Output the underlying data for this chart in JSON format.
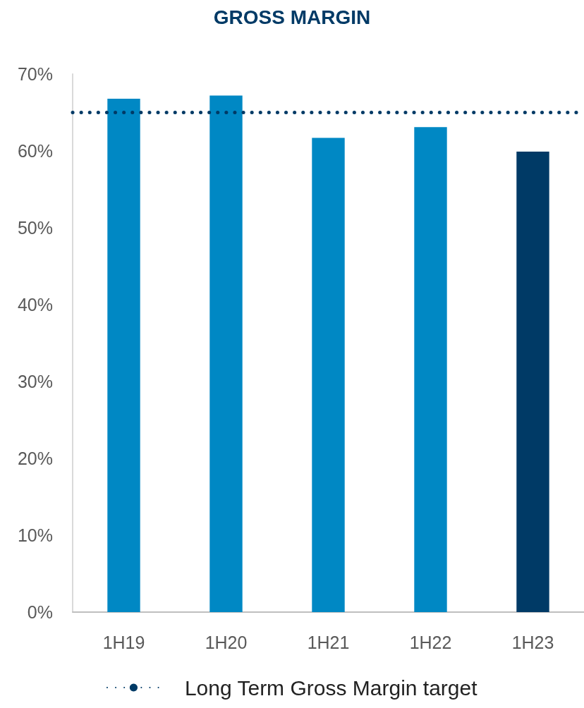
{
  "chart_data": {
    "type": "bar",
    "title": "GROSS MARGIN",
    "categories": [
      "1H19",
      "1H20",
      "1H21",
      "1H22",
      "1H23"
    ],
    "values": [
      66.8,
      67.2,
      61.7,
      63.1,
      59.9
    ],
    "colors": [
      "#0088c4",
      "#0088c4",
      "#0088c4",
      "#0088c4",
      "#003a66"
    ],
    "ylim": [
      0,
      70
    ],
    "yticks": [
      {
        "value": 0,
        "label": "0%"
      },
      {
        "value": 10,
        "label": "10%"
      },
      {
        "value": 20,
        "label": "20%"
      },
      {
        "value": 30,
        "label": "30%"
      },
      {
        "value": 40,
        "label": "40%"
      },
      {
        "value": 50,
        "label": "50%"
      },
      {
        "value": 60,
        "label": "60%"
      },
      {
        "value": 70,
        "label": "70%"
      }
    ],
    "ref_lines": [
      {
        "axis": "y",
        "value": 65,
        "label": "Long Term Gross Margin target",
        "color": "#003a66",
        "line_style": "dotted"
      }
    ],
    "grid": false,
    "legend": "bottom"
  }
}
